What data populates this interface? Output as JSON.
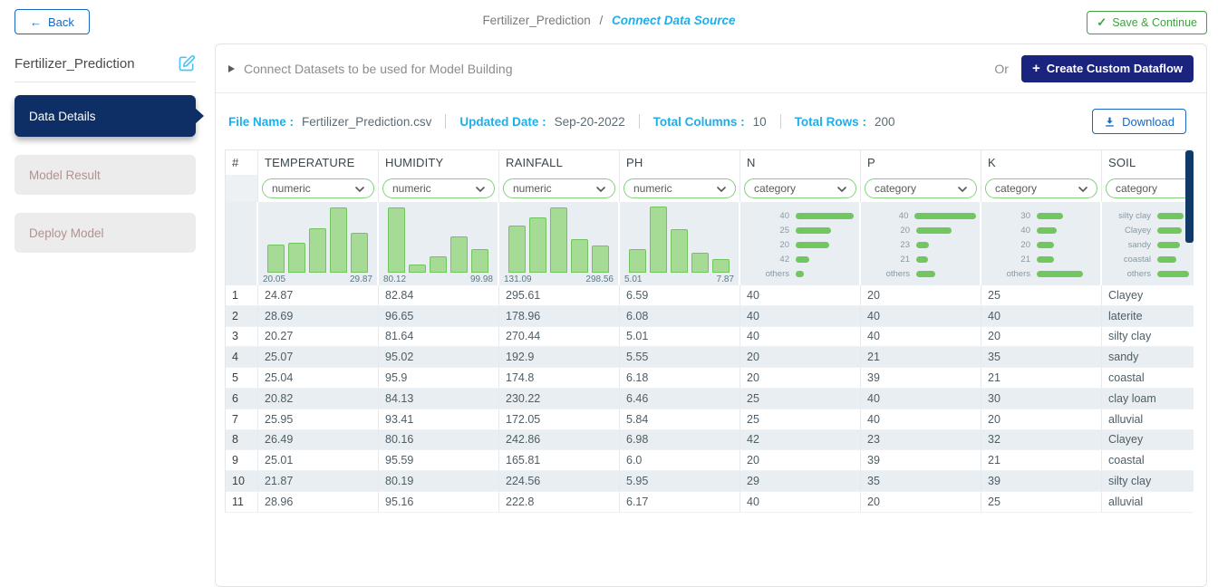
{
  "colors": {
    "accent_cyan": "#1FAEE9",
    "sidebar_navy": "#0D2F66",
    "button_navy": "#1a237e",
    "action_blue": "#1966C0",
    "action_green": "#3FA142",
    "bar_green": "#71C65F",
    "hist_fill": "#A6DB95",
    "hist_border": "#72C45D",
    "stripe": "#E8EEF2"
  },
  "icons": {
    "back_arrow": "←",
    "save_check": "✓",
    "plus": "+",
    "edit": "pencil-square",
    "download": "download-tray",
    "chevron": "chevron-down",
    "expand": "caret-right"
  },
  "topbar": {
    "back_label": "Back",
    "breadcrumb": {
      "parent": "Fertilizer_Prediction",
      "separator": "/",
      "current": "Connect Data Source"
    },
    "save_label": "Save & Continue"
  },
  "sidebar": {
    "project_name": "Fertilizer_Prediction",
    "items": [
      {
        "label": "Data Details",
        "state": "active"
      },
      {
        "label": "Model Result",
        "state": "disabled"
      },
      {
        "label": "Deploy Model",
        "state": "disabled"
      }
    ]
  },
  "main": {
    "section_title": "Connect Datasets to be used for Model Building",
    "or_label": "Or",
    "create_dataflow_label": "Create Custom Dataflow",
    "file_info": [
      {
        "label": "File Name :",
        "value": "Fertilizer_Prediction.csv"
      },
      {
        "label": "Updated Date :",
        "value": "Sep-20-2022"
      },
      {
        "label": "Total Columns :",
        "value": "10"
      },
      {
        "label": "Total Rows :",
        "value": "200"
      }
    ],
    "download_label": "Download"
  },
  "table": {
    "index_header": "#",
    "columns": [
      {
        "name": "TEMPERATURE",
        "filter": "numeric",
        "chart": {
          "kind": "histogram",
          "heights": [
            0.42,
            0.45,
            0.66,
            0.97,
            0.6
          ],
          "min": "20.05",
          "max": "29.87"
        }
      },
      {
        "name": "HUMIDITY",
        "filter": "numeric",
        "chart": {
          "kind": "histogram",
          "heights": [
            0.97,
            0.12,
            0.25,
            0.54,
            0.35
          ],
          "min": "80.12",
          "max": "99.98"
        }
      },
      {
        "name": "RAINFALL",
        "filter": "numeric",
        "chart": {
          "kind": "histogram",
          "heights": [
            0.7,
            0.82,
            0.97,
            0.5,
            0.4
          ],
          "min": "131.09",
          "max": "298.56"
        }
      },
      {
        "name": "PH",
        "filter": "numeric",
        "chart": {
          "kind": "histogram",
          "heights": [
            0.35,
            0.98,
            0.65,
            0.3,
            0.2
          ],
          "min": "5.01",
          "max": "7.87"
        }
      },
      {
        "name": "N",
        "filter": "category",
        "chart": {
          "kind": "catbars",
          "items": [
            {
              "label": "40",
              "w": 0.92
            },
            {
              "label": "25",
              "w": 0.55
            },
            {
              "label": "20",
              "w": 0.53
            },
            {
              "label": "42",
              "w": 0.22
            },
            {
              "label": "others",
              "w": 0.13
            }
          ]
        }
      },
      {
        "name": "P",
        "filter": "category",
        "chart": {
          "kind": "catbars",
          "items": [
            {
              "label": "40",
              "w": 1.0
            },
            {
              "label": "20",
              "w": 0.56
            },
            {
              "label": "23",
              "w": 0.2
            },
            {
              "label": "21",
              "w": 0.18
            },
            {
              "label": "others",
              "w": 0.3
            }
          ]
        }
      },
      {
        "name": "K",
        "filter": "category",
        "chart": {
          "kind": "catbars",
          "items": [
            {
              "label": "30",
              "w": 0.42
            },
            {
              "label": "40",
              "w": 0.32
            },
            {
              "label": "20",
              "w": 0.27
            },
            {
              "label": "21",
              "w": 0.27
            },
            {
              "label": "others",
              "w": 0.73
            }
          ]
        }
      },
      {
        "name": "SOIL",
        "filter": "category",
        "chart": {
          "kind": "catbars",
          "items": [
            {
              "label": "silty clay",
              "w": 0.42
            },
            {
              "label": "Clayey",
              "w": 0.38
            },
            {
              "label": "sandy",
              "w": 0.35
            },
            {
              "label": "coastal",
              "w": 0.3
            },
            {
              "label": "others",
              "w": 0.5
            }
          ]
        }
      }
    ],
    "rows": [
      [
        "24.87",
        "82.84",
        "295.61",
        "6.59",
        "40",
        "20",
        "25",
        "Clayey"
      ],
      [
        "28.69",
        "96.65",
        "178.96",
        "6.08",
        "40",
        "40",
        "40",
        "laterite"
      ],
      [
        "20.27",
        "81.64",
        "270.44",
        "5.01",
        "40",
        "40",
        "20",
        "silty clay"
      ],
      [
        "25.07",
        "95.02",
        "192.9",
        "5.55",
        "20",
        "21",
        "35",
        "sandy"
      ],
      [
        "25.04",
        "95.9",
        "174.8",
        "6.18",
        "20",
        "39",
        "21",
        "coastal"
      ],
      [
        "20.82",
        "84.13",
        "230.22",
        "6.46",
        "25",
        "40",
        "30",
        "clay loam"
      ],
      [
        "25.95",
        "93.41",
        "172.05",
        "5.84",
        "25",
        "40",
        "20",
        "alluvial"
      ],
      [
        "26.49",
        "80.16",
        "242.86",
        "6.98",
        "42",
        "23",
        "32",
        "Clayey"
      ],
      [
        "25.01",
        "95.59",
        "165.81",
        "6.0",
        "20",
        "39",
        "21",
        "coastal"
      ],
      [
        "21.87",
        "80.19",
        "224.56",
        "5.95",
        "29",
        "35",
        "39",
        "silty clay"
      ],
      [
        "28.96",
        "95.16",
        "222.8",
        "6.17",
        "40",
        "20",
        "25",
        "alluvial"
      ]
    ]
  }
}
